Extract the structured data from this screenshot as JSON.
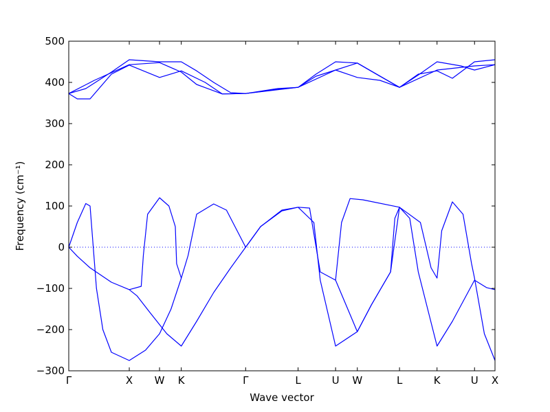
{
  "chart_data": {
    "type": "line",
    "title": "",
    "xlabel": "Wave vector",
    "ylabel": "Frequency (cm⁻¹)",
    "ylim": [
      -300,
      500
    ],
    "yticks": [
      -300,
      -200,
      -100,
      0,
      100,
      200,
      300,
      400,
      500
    ],
    "ytick_labels": [
      "−300",
      "−200",
      "−100",
      "0",
      "100",
      "200",
      "300",
      "400",
      "500"
    ],
    "xlim": [
      0,
      1
    ],
    "xticks": [
      {
        "label": "Γ",
        "x": 0.0
      },
      {
        "label": "X",
        "x": 0.142
      },
      {
        "label": "W",
        "x": 0.213
      },
      {
        "label": "K",
        "x": 0.264
      },
      {
        "label": "Γ",
        "x": 0.415
      },
      {
        "label": "L",
        "x": 0.538
      },
      {
        "label": "U",
        "x": 0.626
      },
      {
        "label": "W",
        "x": 0.677
      },
      {
        "label": "L",
        "x": 0.776
      },
      {
        "label": "K",
        "x": 0.864
      },
      {
        "label": "U",
        "x": 0.952
      },
      {
        "label": "X",
        "x": 1.0
      }
    ],
    "zero_line": true,
    "color": "#0000ff",
    "series": [
      {
        "values": [
          [
            0,
            0
          ],
          [
            0.02,
            -22
          ],
          [
            0.05,
            -50
          ],
          [
            0.1,
            -85
          ],
          [
            0.142,
            -103
          ],
          [
            0.16,
            -118
          ],
          [
            0.19,
            -158
          ],
          [
            0.23,
            -210
          ],
          [
            0.264,
            -240
          ],
          [
            0.3,
            -180
          ],
          [
            0.34,
            -110
          ],
          [
            0.38,
            -50
          ],
          [
            0.415,
            0
          ],
          [
            0.45,
            50
          ],
          [
            0.5,
            88
          ],
          [
            0.538,
            97
          ]
        ]
      },
      {
        "values": [
          [
            0,
            0
          ],
          [
            0.02,
            60
          ],
          [
            0.04,
            106
          ],
          [
            0.05,
            100
          ],
          [
            0.065,
            -100
          ],
          [
            0.08,
            -200
          ],
          [
            0.1,
            -255
          ],
          [
            0.142,
            -275
          ],
          [
            0.18,
            -250
          ],
          [
            0.213,
            -210
          ],
          [
            0.24,
            -150
          ],
          [
            0.264,
            -75
          ]
        ]
      },
      {
        "values": [
          [
            0.142,
            -103
          ],
          [
            0.17,
            -95
          ],
          [
            0.175,
            -20
          ],
          [
            0.185,
            80
          ],
          [
            0.213,
            120
          ],
          [
            0.235,
            100
          ],
          [
            0.25,
            50
          ],
          [
            0.253,
            -40
          ],
          [
            0.264,
            -75
          ],
          [
            0.28,
            -20
          ],
          [
            0.3,
            80
          ],
          [
            0.34,
            105
          ],
          [
            0.37,
            90
          ],
          [
            0.4,
            30
          ],
          [
            0.415,
            0
          ],
          [
            0.45,
            50
          ],
          [
            0.5,
            90
          ],
          [
            0.538,
            97
          ],
          [
            0.575,
            60
          ],
          [
            0.59,
            -80
          ],
          [
            0.626,
            -240
          ],
          [
            0.677,
            -205
          ],
          [
            0.71,
            -140
          ],
          [
            0.755,
            -60
          ],
          [
            0.765,
            70
          ],
          [
            0.776,
            97
          ],
          [
            0.8,
            70
          ],
          [
            0.82,
            -60
          ],
          [
            0.864,
            -240
          ],
          [
            0.9,
            -180
          ],
          [
            0.952,
            -80
          ],
          [
            0.98,
            -98
          ],
          [
            1.0,
            -103
          ]
        ]
      },
      {
        "values": [
          [
            0.538,
            97
          ],
          [
            0.565,
            95
          ],
          [
            0.59,
            -60
          ],
          [
            0.626,
            -80
          ],
          [
            0.677,
            -205
          ],
          [
            0.71,
            -140
          ],
          [
            0.755,
            -60
          ],
          [
            0.776,
            97
          ],
          [
            0.825,
            60
          ],
          [
            0.85,
            -50
          ],
          [
            0.864,
            -75
          ],
          [
            0.875,
            40
          ],
          [
            0.9,
            110
          ],
          [
            0.925,
            80
          ],
          [
            0.945,
            -40
          ],
          [
            0.952,
            -75
          ],
          [
            0.975,
            -210
          ],
          [
            1.0,
            -275
          ]
        ]
      },
      {
        "values": [
          [
            0.626,
            -80
          ],
          [
            0.64,
            60
          ],
          [
            0.66,
            118
          ],
          [
            0.69,
            115
          ],
          [
            0.776,
            97
          ]
        ]
      },
      {
        "values": [
          [
            0,
            373
          ],
          [
            0.02,
            360
          ],
          [
            0.05,
            360
          ],
          [
            0.1,
            420
          ],
          [
            0.142,
            442
          ],
          [
            0.213,
            412
          ],
          [
            0.264,
            428
          ],
          [
            0.32,
            400
          ],
          [
            0.36,
            372
          ],
          [
            0.415,
            373
          ],
          [
            0.49,
            385
          ],
          [
            0.538,
            388
          ],
          [
            0.58,
            420
          ],
          [
            0.626,
            450
          ],
          [
            0.677,
            447
          ],
          [
            0.73,
            415
          ],
          [
            0.776,
            388
          ],
          [
            0.82,
            420
          ],
          [
            0.864,
            428
          ],
          [
            0.9,
            410
          ],
          [
            0.952,
            450
          ],
          [
            1.0,
            455
          ]
        ]
      },
      {
        "values": [
          [
            0,
            373
          ],
          [
            0.04,
            385
          ],
          [
            0.1,
            425
          ],
          [
            0.142,
            455
          ],
          [
            0.213,
            450
          ],
          [
            0.264,
            450
          ],
          [
            0.3,
            428
          ],
          [
            0.34,
            400
          ],
          [
            0.38,
            375
          ],
          [
            0.415,
            373
          ],
          [
            0.49,
            383
          ],
          [
            0.538,
            388
          ],
          [
            0.58,
            415
          ],
          [
            0.626,
            430
          ],
          [
            0.677,
            412
          ],
          [
            0.73,
            405
          ],
          [
            0.776,
            388
          ],
          [
            0.82,
            418
          ],
          [
            0.864,
            450
          ],
          [
            0.92,
            440
          ],
          [
            0.952,
            430
          ],
          [
            1.0,
            443
          ]
        ]
      },
      {
        "values": [
          [
            0,
            373
          ],
          [
            0.06,
            405
          ],
          [
            0.142,
            443
          ],
          [
            0.213,
            448
          ],
          [
            0.264,
            425
          ],
          [
            0.3,
            395
          ],
          [
            0.36,
            372
          ],
          [
            0.415,
            373
          ],
          [
            0.538,
            388
          ],
          [
            0.626,
            430
          ],
          [
            0.677,
            447
          ],
          [
            0.776,
            388
          ],
          [
            0.864,
            430
          ],
          [
            0.952,
            440
          ],
          [
            1.0,
            443
          ]
        ]
      }
    ]
  }
}
